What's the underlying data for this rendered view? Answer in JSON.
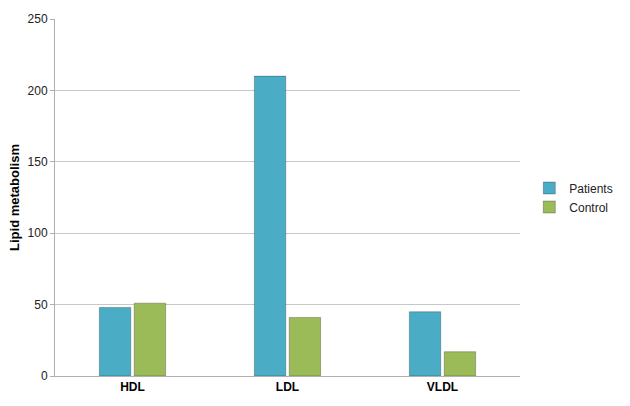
{
  "chart_data": {
    "type": "bar",
    "y_label": "Lipid metabolism",
    "categories": [
      "HDL",
      "LDL",
      "VLDL"
    ],
    "series": [
      {
        "name": "Patients",
        "color": "#4bacc6",
        "values": [
          48,
          210,
          45
        ]
      },
      {
        "name": "Control",
        "color": "#9bbb59",
        "values": [
          51,
          41,
          17
        ]
      }
    ],
    "ylim": [
      0,
      250
    ],
    "yticks": [
      0,
      50,
      100,
      150,
      200,
      250
    ],
    "grid": true,
    "legend": "right"
  }
}
